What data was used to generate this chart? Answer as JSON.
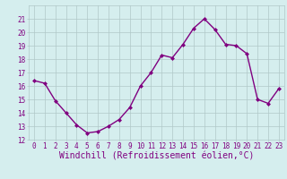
{
  "x": [
    0,
    1,
    2,
    3,
    4,
    5,
    6,
    7,
    8,
    9,
    10,
    11,
    12,
    13,
    14,
    15,
    16,
    17,
    18,
    19,
    20,
    21,
    22,
    23
  ],
  "y": [
    16.4,
    16.2,
    14.9,
    14.0,
    13.1,
    12.5,
    12.6,
    13.0,
    13.5,
    14.4,
    16.0,
    17.0,
    18.3,
    18.1,
    19.1,
    20.3,
    21.0,
    20.2,
    19.1,
    19.0,
    18.4,
    15.0,
    14.7,
    15.8
  ],
  "line_color": "#800080",
  "marker": "D",
  "marker_size": 2.0,
  "bg_color": "#d5eeee",
  "grid_color": "#b0c8c8",
  "xlabel": "Windchill (Refroidissement éolien,°C)",
  "xlabel_color": "#800080",
  "ylim": [
    12,
    22
  ],
  "yticks": [
    12,
    13,
    14,
    15,
    16,
    17,
    18,
    19,
    20,
    21
  ],
  "xticks": [
    0,
    1,
    2,
    3,
    4,
    5,
    6,
    7,
    8,
    9,
    10,
    11,
    12,
    13,
    14,
    15,
    16,
    17,
    18,
    19,
    20,
    21,
    22,
    23
  ],
  "tick_label_fontsize": 5.5,
  "xlabel_fontsize": 7.0,
  "linewidth": 1.0
}
